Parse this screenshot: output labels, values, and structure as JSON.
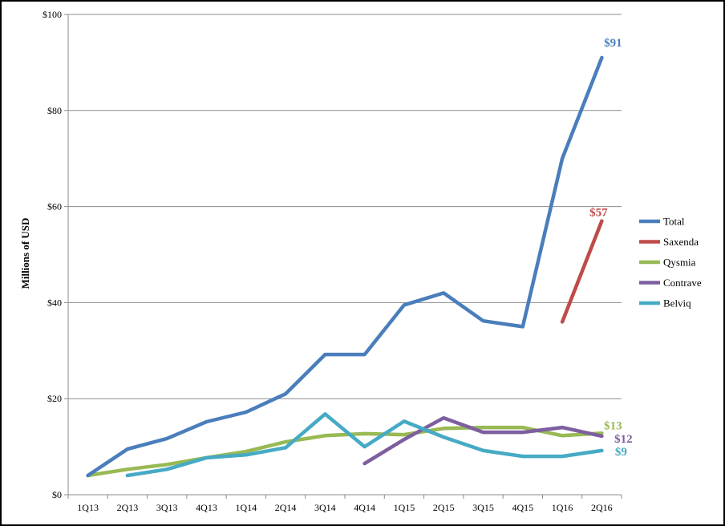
{
  "chart_data": {
    "type": "line",
    "title": "",
    "xlabel": "",
    "ylabel": "Millions of USD",
    "ylim": [
      0,
      100
    ],
    "y_ticks": [
      0,
      20,
      40,
      60,
      80,
      100
    ],
    "y_tick_labels": [
      "$0",
      "$20",
      "$40",
      "$60",
      "$80",
      "$100"
    ],
    "grid": "horizontal",
    "legend_position": "right",
    "categories": [
      "1Q13",
      "2Q13",
      "3Q13",
      "4Q13",
      "1Q14",
      "2Q14",
      "3Q14",
      "4Q14",
      "1Q15",
      "2Q15",
      "3Q15",
      "4Q15",
      "1Q16",
      "2Q16"
    ],
    "series": [
      {
        "name": "Total",
        "color": "#4a7ebb",
        "values": [
          4,
          9.5,
          11.7,
          15.2,
          17.2,
          21,
          29.2,
          29.2,
          39.5,
          42,
          36.2,
          35,
          70,
          91
        ],
        "end_label": "$91"
      },
      {
        "name": "Saxenda",
        "color": "#be4b48",
        "values": [
          null,
          null,
          null,
          null,
          null,
          null,
          null,
          null,
          null,
          null,
          null,
          null,
          36,
          57
        ],
        "end_label": "$57"
      },
      {
        "name": "Qysmia",
        "color": "#98b954",
        "values": [
          4,
          5.3,
          6.3,
          7.7,
          9,
          11,
          12.3,
          12.7,
          12.5,
          13.8,
          14,
          14,
          12.3,
          12.8
        ],
        "end_label": "$13"
      },
      {
        "name": "Contrave",
        "color": "#7d5fa0",
        "values": [
          null,
          null,
          null,
          null,
          null,
          null,
          null,
          6.5,
          11.5,
          16,
          13,
          13,
          14,
          12.2
        ],
        "end_label": "$12"
      },
      {
        "name": "Belviq",
        "color": "#46aac5",
        "values": [
          null,
          4,
          5.3,
          7.7,
          8.3,
          9.8,
          16.8,
          10,
          15.3,
          12,
          9.2,
          8,
          8,
          9.2
        ],
        "end_label": "$9"
      }
    ]
  }
}
